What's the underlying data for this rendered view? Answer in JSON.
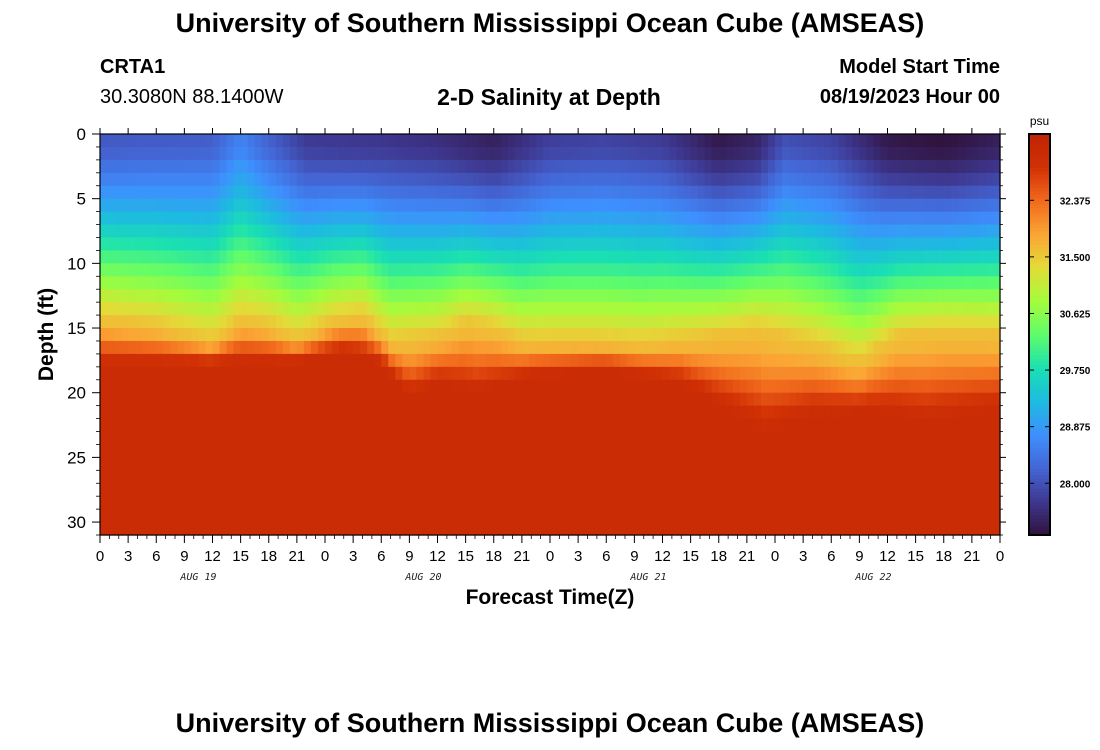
{
  "header": {
    "title": "University of Southern Mississippi Ocean Cube (AMSEAS)",
    "station_id": "CRTA1",
    "coordinates": "30.3080N  88.1400W",
    "chart_title": "2-D Salinity at Depth",
    "model_start_label": "Model Start Time",
    "model_start_value": "08/19/2023 Hour 00"
  },
  "footer": {
    "title": "University of Southern Mississippi Ocean Cube (AMSEAS)"
  },
  "colors": {
    "background": "#ffffff",
    "text": "#000000",
    "colormap": [
      "#30123b",
      "#3e378f",
      "#4465d4",
      "#3e8ffe",
      "#1dbbe0",
      "#1ae0b2",
      "#5efc6c",
      "#a4fc3c",
      "#e2dc38",
      "#fba535",
      "#f26b1d",
      "#d23105",
      "#bf2404"
    ]
  },
  "chart_data": {
    "type": "heatmap",
    "title": "2-D Salinity at Depth",
    "xlabel": "Forecast Time(Z)",
    "ylabel": "Depth (ft)",
    "x_range_hours": [
      0,
      96
    ],
    "x_tick_step_hours": 3,
    "x_tick_labels": [
      "0",
      "3",
      "6",
      "9",
      "12",
      "15",
      "18",
      "21",
      "0",
      "3",
      "6",
      "9",
      "12",
      "15",
      "18",
      "21",
      "0",
      "3",
      "6",
      "9",
      "12",
      "15",
      "18",
      "21",
      "0",
      "3",
      "6",
      "9",
      "12",
      "15",
      "18",
      "21",
      "0"
    ],
    "day_labels": [
      {
        "label": "AUG 19",
        "hour": 10.5
      },
      {
        "label": "AUG 20",
        "hour": 34.5
      },
      {
        "label": "AUG 21",
        "hour": 58.5
      },
      {
        "label": "AUG 22",
        "hour": 82.5
      }
    ],
    "y_range_ft": [
      0,
      31
    ],
    "y_ticks": [
      0,
      5,
      10,
      15,
      20,
      25,
      30
    ],
    "y_tick_labels": [
      "0",
      "5",
      "10",
      "15",
      "20",
      "25",
      "30"
    ],
    "colorbar": {
      "units": "psu",
      "range": [
        27.2,
        33.4
      ],
      "ticks": [
        28.0,
        28.875,
        29.75,
        30.625,
        31.5,
        32.375
      ],
      "tick_labels": [
        "28.000",
        "28.875",
        "29.750",
        "30.625",
        "31.500",
        "32.375"
      ]
    },
    "surface_salinity_psu": [
      {
        "hour": 0,
        "psu": 28.1
      },
      {
        "hour": 12,
        "psu": 28.15
      },
      {
        "hour": 15,
        "psu": 28.6
      },
      {
        "hour": 18,
        "psu": 28.2
      },
      {
        "hour": 22,
        "psu": 27.75
      },
      {
        "hour": 30,
        "psu": 27.7
      },
      {
        "hour": 36,
        "psu": 27.6
      },
      {
        "hour": 42,
        "psu": 27.4
      },
      {
        "hour": 48,
        "psu": 27.8
      },
      {
        "hour": 54,
        "psu": 27.85
      },
      {
        "hour": 60,
        "psu": 27.75
      },
      {
        "hour": 66,
        "psu": 27.3
      },
      {
        "hour": 70,
        "psu": 27.45
      },
      {
        "hour": 73,
        "psu": 28.0
      },
      {
        "hour": 78,
        "psu": 27.85
      },
      {
        "hour": 84,
        "psu": 27.3
      },
      {
        "hour": 90,
        "psu": 27.2
      },
      {
        "hour": 96,
        "psu": 27.4
      }
    ],
    "halocline_depth_ft": [
      {
        "hour": 0,
        "depth": 14.3
      },
      {
        "hour": 6,
        "depth": 14.8
      },
      {
        "hour": 12,
        "depth": 16.0
      },
      {
        "hour": 15,
        "depth": 14.4
      },
      {
        "hour": 18,
        "depth": 14.8
      },
      {
        "hour": 21,
        "depth": 15.8
      },
      {
        "hour": 25,
        "depth": 14.4
      },
      {
        "hour": 28,
        "depth": 14.0
      },
      {
        "hour": 31,
        "depth": 16.0
      },
      {
        "hour": 36,
        "depth": 15.6
      },
      {
        "hour": 39,
        "depth": 14.6
      },
      {
        "hour": 42,
        "depth": 15.0
      },
      {
        "hour": 45,
        "depth": 16.0
      },
      {
        "hour": 52,
        "depth": 16.0
      },
      {
        "hour": 58,
        "depth": 16.2
      },
      {
        "hour": 64,
        "depth": 15.7
      },
      {
        "hour": 70,
        "depth": 15.0
      },
      {
        "hour": 76,
        "depth": 16.2
      },
      {
        "hour": 81,
        "depth": 17.6
      },
      {
        "hour": 85,
        "depth": 15.6
      },
      {
        "hour": 90,
        "depth": 15.2
      },
      {
        "hour": 96,
        "depth": 15.4
      }
    ],
    "bottom_mix_depth_ft": [
      {
        "hour": 0,
        "depth": 18.2
      },
      {
        "hour": 20,
        "depth": 18.0
      },
      {
        "hour": 26,
        "depth": 17.2
      },
      {
        "hour": 30,
        "depth": 18.0
      },
      {
        "hour": 33,
        "depth": 20.8
      },
      {
        "hour": 36,
        "depth": 19.6
      },
      {
        "hour": 40,
        "depth": 20.5
      },
      {
        "hour": 46,
        "depth": 19.0
      },
      {
        "hour": 54,
        "depth": 18.5
      },
      {
        "hour": 62,
        "depth": 19.6
      },
      {
        "hour": 66,
        "depth": 21.5
      },
      {
        "hour": 71,
        "depth": 23.8
      },
      {
        "hour": 76,
        "depth": 22.2
      },
      {
        "hour": 82,
        "depth": 21.8
      },
      {
        "hour": 88,
        "depth": 22.8
      },
      {
        "hour": 96,
        "depth": 22.0
      }
    ],
    "deep_salinity_psu": 33.1
  }
}
